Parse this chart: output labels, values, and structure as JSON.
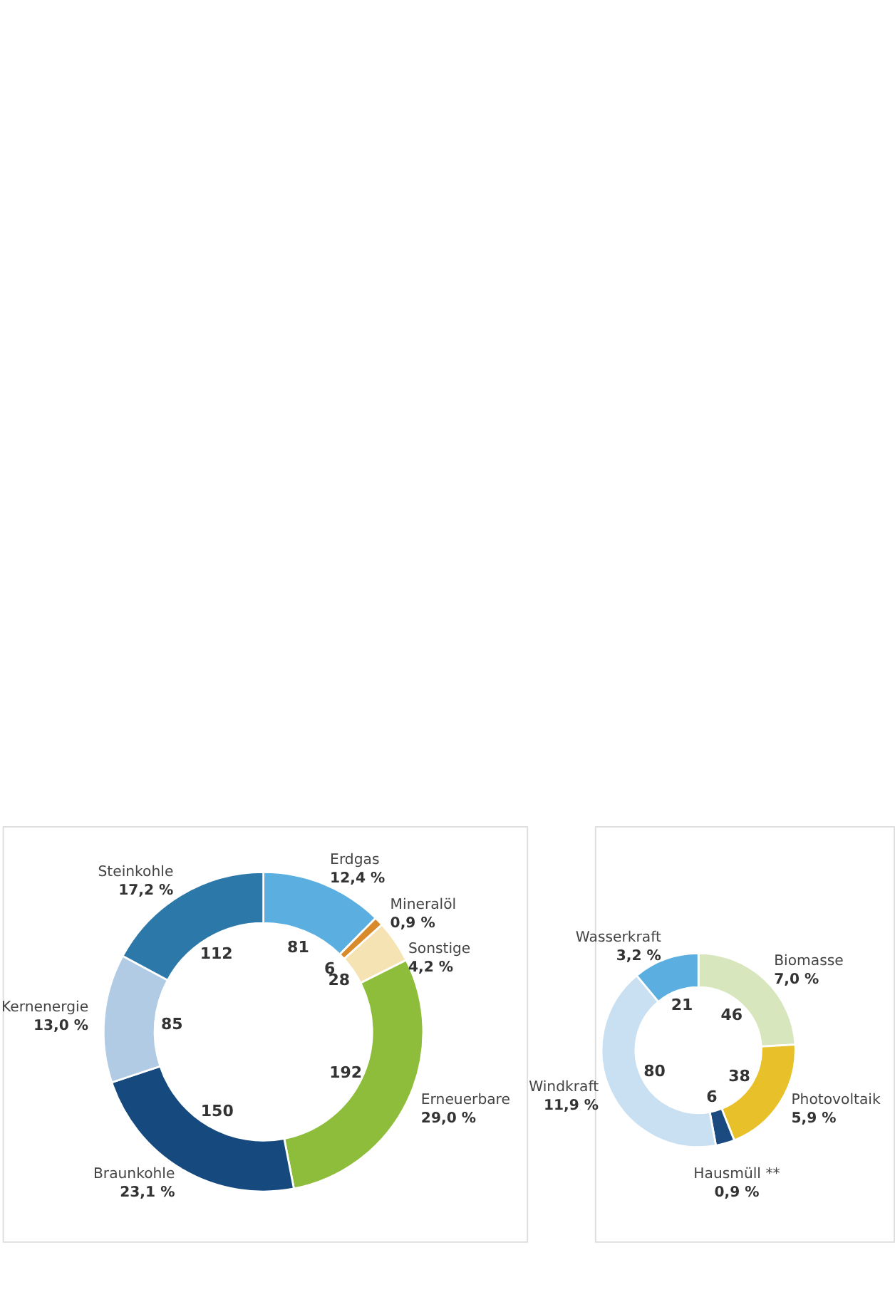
{
  "chart_data": [
    {
      "type": "donut",
      "categories": [
        "Erdgas\n12,4 %",
        "Mineralöl\n0,9 %",
        "Sonstige\n4,2 %",
        "Erneuerbare\n29,0 %",
        "Braunkohle\n23,1 %",
        "Kernenergie\n13,0 %",
        "Steinkohle\n17,2 %"
      ],
      "values": [
        81,
        6,
        28,
        192,
        150,
        85,
        112
      ],
      "colors": [
        "#5aafe0",
        "#d98a2b",
        "#f6e3b4",
        "#8dbd3a",
        "#164a7f",
        "#b0cbe3",
        "#2c78a8"
      ],
      "data_labels": true,
      "legend": false
    },
    {
      "type": "donut",
      "categories": [
        "Biomasse\n7,0 %",
        "Photovoltaik\n5,9 %",
        "Hausmüll **\n0,9 %",
        "Windkraft\n11,9 %",
        "Wasserkraft\n3,2 %"
      ],
      "values": [
        46,
        38,
        6,
        80,
        21
      ],
      "colors": [
        "#d8e6bd",
        "#e8c02a",
        "#1a4a80",
        "#c9e0f2",
        "#5aafe0"
      ],
      "data_labels": true,
      "legend": false
    }
  ]
}
